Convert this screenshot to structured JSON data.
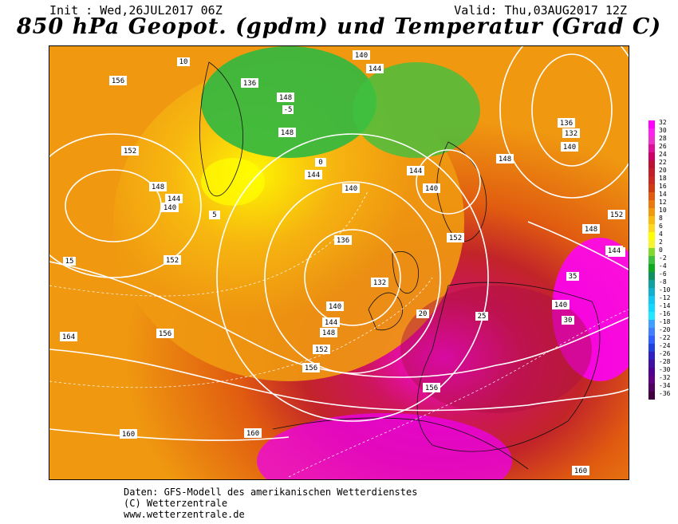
{
  "header": {
    "init": "Init : Wed,26JUL2017 06Z",
    "valid": "Valid: Thu,03AUG2017 12Z",
    "title": "850 hPa Geopot. (gpdm) und Temperatur (Grad C)"
  },
  "map": {
    "geopotential_labels": [
      "152",
      "156",
      "140",
      "136",
      "144",
      "148",
      "144",
      "148",
      "140",
      "152",
      "140",
      "144",
      "148",
      "140",
      "132",
      "136",
      "140",
      "144",
      "148",
      "152",
      "156",
      "160",
      "164",
      "160",
      "156",
      "152",
      "148",
      "144",
      "140",
      "136",
      "132",
      "140",
      "144",
      "148",
      "152",
      "144",
      "156",
      "160"
    ],
    "temperature_labels": [
      "10",
      "5",
      "0",
      "-5",
      "15",
      "20",
      "25",
      "30",
      "35"
    ]
  },
  "legend": {
    "values": [
      "32",
      "30",
      "28",
      "26",
      "24",
      "22",
      "20",
      "18",
      "16",
      "14",
      "12",
      "10",
      "8",
      "6",
      "4",
      "2",
      "0",
      "-2",
      "-4",
      "-6",
      "-8",
      "-10",
      "-12",
      "-14",
      "-16",
      "-18",
      "-20",
      "-22",
      "-24",
      "-26",
      "-28",
      "-30",
      "-32",
      "-34",
      "-36"
    ],
    "colors": [
      "#ff00ff",
      "#ff22ee",
      "#ee33cc",
      "#dd1199",
      "#cc0066",
      "#bb1133",
      "#c0202a",
      "#cc2a20",
      "#d03a10",
      "#e05a10",
      "#e87a10",
      "#f09a10",
      "#f8bc10",
      "#ffd820",
      "#ffff00",
      "#f4f430",
      "#80d830",
      "#40c040",
      "#10a820",
      "#109060",
      "#10a0a0",
      "#10b0d0",
      "#10c8f0",
      "#10d8ff",
      "#20e8ff",
      "#40a0ff",
      "#4080ff",
      "#3060ff",
      "#2040e0",
      "#3020c0",
      "#4010a0",
      "#500090",
      "#600080",
      "#500060",
      "#400040"
    ]
  },
  "credits": {
    "line1": "Daten: GFS-Modell des amerikanischen Wetterdienstes",
    "line2": "(C) Wetterzentrale",
    "line3": "www.wetterzentrale.de"
  }
}
